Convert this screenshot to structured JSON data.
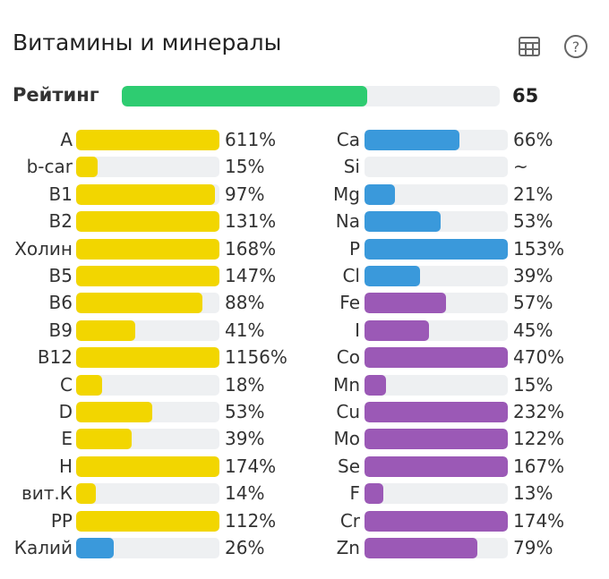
{
  "title": "Витамины и минералы",
  "icons": {
    "table": "table-icon",
    "help": "help-circle-icon"
  },
  "rating": {
    "label": "Рейтинг",
    "value": "65",
    "percent": 65,
    "color": "#2ecc71"
  },
  "colors": {
    "vitamin": "#f2d600",
    "blue": "#3a99db",
    "purple": "#9b59b6",
    "track": "#eef0f2"
  },
  "left": [
    {
      "label": "A",
      "value": "611%",
      "pct": 611,
      "color": "vitamin"
    },
    {
      "label": "b-car",
      "value": "15%",
      "pct": 15,
      "color": "vitamin"
    },
    {
      "label": "B1",
      "value": "97%",
      "pct": 97,
      "color": "vitamin"
    },
    {
      "label": "B2",
      "value": "131%",
      "pct": 131,
      "color": "vitamin"
    },
    {
      "label": "Холин",
      "value": "168%",
      "pct": 168,
      "color": "vitamin"
    },
    {
      "label": "B5",
      "value": "147%",
      "pct": 147,
      "color": "vitamin"
    },
    {
      "label": "B6",
      "value": "88%",
      "pct": 88,
      "color": "vitamin"
    },
    {
      "label": "B9",
      "value": "41%",
      "pct": 41,
      "color": "vitamin"
    },
    {
      "label": "B12",
      "value": "1156%",
      "pct": 1156,
      "color": "vitamin"
    },
    {
      "label": "C",
      "value": "18%",
      "pct": 18,
      "color": "vitamin"
    },
    {
      "label": "D",
      "value": "53%",
      "pct": 53,
      "color": "vitamin"
    },
    {
      "label": "E",
      "value": "39%",
      "pct": 39,
      "color": "vitamin"
    },
    {
      "label": "H",
      "value": "174%",
      "pct": 174,
      "color": "vitamin"
    },
    {
      "label": "вит.К",
      "value": "14%",
      "pct": 14,
      "color": "vitamin"
    },
    {
      "label": "PP",
      "value": "112%",
      "pct": 112,
      "color": "vitamin"
    },
    {
      "label": "Калий",
      "value": "26%",
      "pct": 26,
      "color": "blue"
    }
  ],
  "right": [
    {
      "label": "Ca",
      "value": "66%",
      "pct": 66,
      "color": "blue"
    },
    {
      "label": "Si",
      "value": "~",
      "pct": 0,
      "color": "blue"
    },
    {
      "label": "Mg",
      "value": "21%",
      "pct": 21,
      "color": "blue"
    },
    {
      "label": "Na",
      "value": "53%",
      "pct": 53,
      "color": "blue"
    },
    {
      "label": "P",
      "value": "153%",
      "pct": 153,
      "color": "blue"
    },
    {
      "label": "Cl",
      "value": "39%",
      "pct": 39,
      "color": "blue"
    },
    {
      "label": "Fe",
      "value": "57%",
      "pct": 57,
      "color": "purple"
    },
    {
      "label": "I",
      "value": "45%",
      "pct": 45,
      "color": "purple"
    },
    {
      "label": "Co",
      "value": "470%",
      "pct": 470,
      "color": "purple"
    },
    {
      "label": "Mn",
      "value": "15%",
      "pct": 15,
      "color": "purple"
    },
    {
      "label": "Cu",
      "value": "232%",
      "pct": 232,
      "color": "purple"
    },
    {
      "label": "Mo",
      "value": "122%",
      "pct": 122,
      "color": "purple"
    },
    {
      "label": "Se",
      "value": "167%",
      "pct": 167,
      "color": "purple"
    },
    {
      "label": "F",
      "value": "13%",
      "pct": 13,
      "color": "purple"
    },
    {
      "label": "Cr",
      "value": "174%",
      "pct": 174,
      "color": "purple"
    },
    {
      "label": "Zn",
      "value": "79%",
      "pct": 79,
      "color": "purple"
    }
  ]
}
